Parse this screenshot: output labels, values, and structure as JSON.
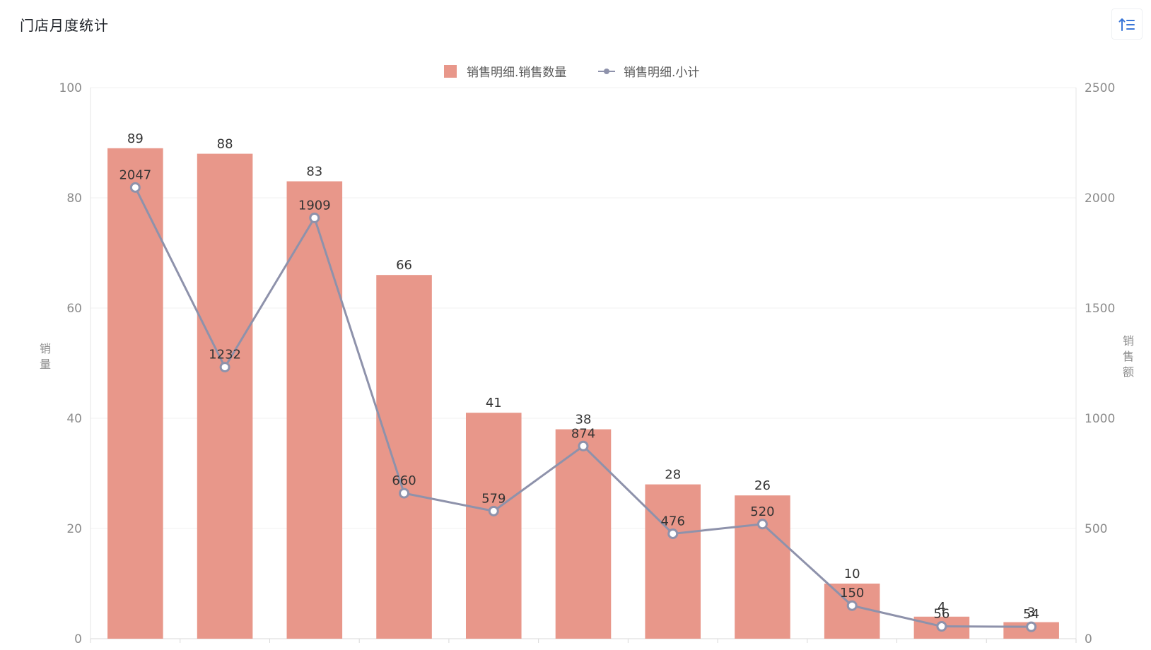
{
  "page": {
    "title": "门店月度统计"
  },
  "toolbar": {
    "sort_icon": "sort-ascending-icon"
  },
  "colors": {
    "bar": "#E8978A",
    "line": "#8E92AB",
    "grid": "#f0f0f0",
    "axis": "#e6e6e6"
  },
  "chart_data": {
    "type": "bar",
    "title": "",
    "legend": {
      "placement": "top-center",
      "entries": [
        "销售明细.销售数量",
        "销售明细.小计"
      ]
    },
    "categories": [
      "",
      "",
      "",
      "",
      "",
      "",
      "",
      "",
      "",
      "",
      ""
    ],
    "series": [
      {
        "name": "销售明细.销售数量",
        "type": "bar",
        "axis": "left",
        "values": [
          89,
          88,
          83,
          66,
          41,
          38,
          28,
          26,
          10,
          4,
          3
        ]
      },
      {
        "name": "销售明细.小计",
        "type": "line",
        "axis": "right",
        "values": [
          2047,
          1232,
          1909,
          660,
          579,
          874,
          476,
          520,
          150,
          56,
          54
        ]
      }
    ],
    "y_left": {
      "label": "销量",
      "range": [
        0,
        100
      ],
      "ticks": [
        "0",
        "20",
        "40",
        "60",
        "80",
        "100"
      ]
    },
    "y_right": {
      "label": "销售额",
      "range": [
        0,
        2500
      ],
      "ticks": [
        "0",
        "500",
        "1000",
        "1500",
        "2000",
        "2500"
      ]
    },
    "grid": true
  }
}
